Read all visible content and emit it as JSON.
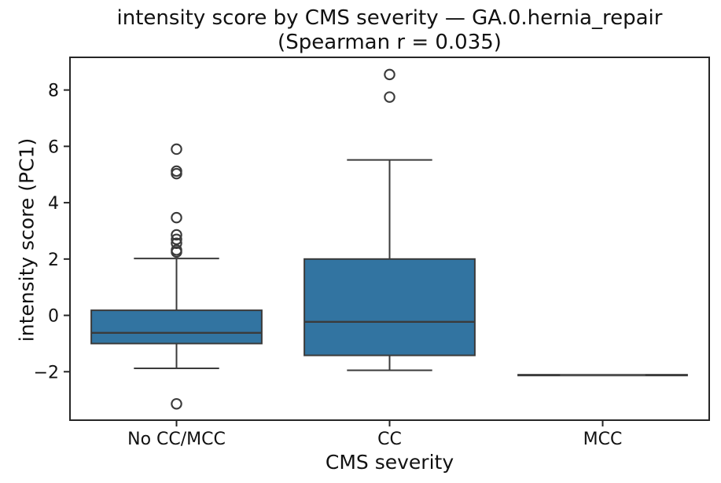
{
  "chart_data": {
    "type": "box",
    "title": "intensity score by CMS severity — GA.0.hernia_repair",
    "subtitle": "(Spearman r = 0.035)",
    "xlabel": "CMS severity",
    "ylabel": "intensity score (PC1)",
    "categories": [
      "No CC/MCC",
      "CC",
      "MCC"
    ],
    "ylim": [
      -3.72,
      9.16
    ],
    "yticks": [
      {
        "value": 8,
        "label": "8"
      },
      {
        "value": 6,
        "label": "6"
      },
      {
        "value": 4,
        "label": "4"
      },
      {
        "value": 2,
        "label": "2"
      },
      {
        "value": 0,
        "label": "0"
      },
      {
        "value": -2,
        "label": "−2"
      }
    ],
    "grid": false,
    "legend": null,
    "box_width": 0.8,
    "groups": [
      {
        "category": "No CC/MCC",
        "whisker_low": -1.88,
        "q1": -1.0,
        "median": -0.62,
        "q3": 0.18,
        "whisker_high": 2.02,
        "outliers": [
          5.9,
          5.12,
          5.03,
          3.47,
          2.86,
          2.7,
          2.56,
          2.32,
          2.25,
          -3.14
        ]
      },
      {
        "category": "CC",
        "whisker_low": -1.95,
        "q1": -1.42,
        "median": -0.23,
        "q3": 2.0,
        "whisker_high": 5.52,
        "outliers": [
          8.55,
          7.75
        ]
      },
      {
        "category": "MCC",
        "whisker_low": -2.12,
        "q1": -2.12,
        "median": -2.12,
        "q3": -2.12,
        "whisker_high": -2.12,
        "outliers": []
      }
    ],
    "colors": {
      "box_fill": "#3274A1",
      "box_edge": "#3b3b3b",
      "whisker": "#3b3b3b",
      "median": "#3b3b3b",
      "flat_median_overlay": "#5c5c5c",
      "outlier_stroke": "#3b3b3b",
      "spine": "#262626",
      "tick": "#262626",
      "text": "#111111"
    }
  }
}
